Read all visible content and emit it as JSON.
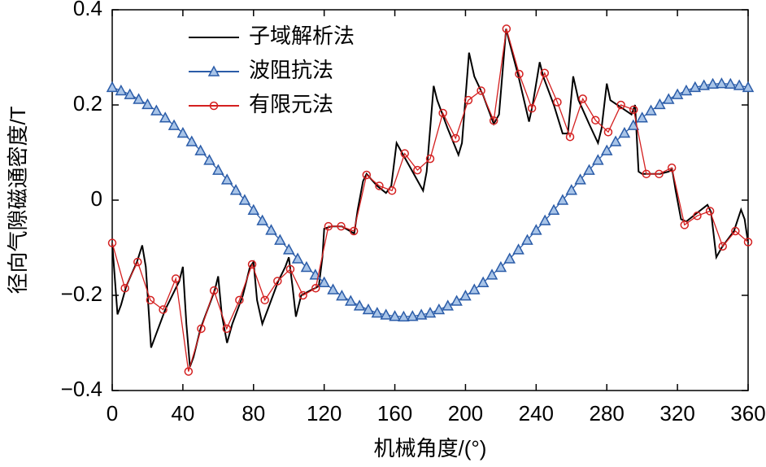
{
  "chart_data": {
    "type": "line",
    "x_label": "机械角度/(°)",
    "y_label": "径向气隙磁通密度/T",
    "xlim": [
      0,
      360
    ],
    "xticks": [
      0,
      40,
      80,
      120,
      160,
      200,
      240,
      280,
      320,
      360
    ],
    "ylim": [
      -0.4,
      0.4
    ],
    "yticks": [
      {
        "value": -0.4,
        "label": "−0.4"
      },
      {
        "value": -0.2,
        "label": "−0.2"
      },
      0,
      0.2,
      0.4
    ],
    "legend": "upper left",
    "series": [
      {
        "name": "子域解析法",
        "color": "#000000",
        "marker": "none",
        "x": [
          0,
          3,
          5,
          8,
          14,
          17,
          19,
          22,
          25,
          30,
          38,
          40,
          42,
          44,
          46,
          50,
          58,
          60,
          62,
          65,
          68,
          74,
          78,
          80,
          82,
          85,
          88,
          94,
          98,
          100,
          102,
          104,
          107,
          112,
          115,
          117,
          119,
          120,
          124,
          130,
          137,
          139,
          142,
          144,
          150,
          155,
          158,
          161,
          164,
          170,
          176,
          178,
          182,
          184,
          190,
          196,
          198,
          202,
          205,
          210,
          216,
          219,
          223,
          225,
          230,
          236,
          238,
          242,
          244,
          250,
          255,
          258,
          261,
          264,
          270,
          275,
          277,
          280,
          282,
          290,
          294,
          296,
          298,
          300,
          310,
          315,
          317,
          319,
          322,
          325,
          330,
          337,
          339,
          342,
          345,
          352,
          356,
          358,
          360
        ],
        "values": [
          -0.09,
          -0.24,
          -0.22,
          -0.18,
          -0.13,
          -0.095,
          -0.14,
          -0.31,
          -0.28,
          -0.23,
          -0.17,
          -0.14,
          -0.26,
          -0.35,
          -0.33,
          -0.27,
          -0.19,
          -0.16,
          -0.24,
          -0.3,
          -0.26,
          -0.2,
          -0.14,
          -0.13,
          -0.21,
          -0.26,
          -0.23,
          -0.17,
          -0.14,
          -0.12,
          -0.18,
          -0.245,
          -0.2,
          -0.19,
          -0.185,
          -0.18,
          -0.12,
          -0.06,
          -0.055,
          -0.055,
          -0.07,
          -0.02,
          0.04,
          0.055,
          0.03,
          0.015,
          0.03,
          0.12,
          0.1,
          0.06,
          0.02,
          0.06,
          0.24,
          0.21,
          0.15,
          0.095,
          0.12,
          0.31,
          0.26,
          0.22,
          0.16,
          0.18,
          0.36,
          0.33,
          0.26,
          0.165,
          0.2,
          0.29,
          0.26,
          0.2,
          0.14,
          0.14,
          0.26,
          0.21,
          0.16,
          0.12,
          0.15,
          0.245,
          0.21,
          0.19,
          0.18,
          0.2,
          0.06,
          0.055,
          0.055,
          0.06,
          0.065,
          0.02,
          -0.04,
          -0.045,
          -0.03,
          -0.01,
          -0.025,
          -0.12,
          -0.1,
          -0.065,
          -0.02,
          -0.04,
          -0.09
        ]
      },
      {
        "name": "波阻抗法",
        "color": "#2b5ca8",
        "marker": "triangle",
        "x": [
          0,
          5,
          10,
          15,
          20,
          25,
          30,
          35,
          40,
          45,
          50,
          55,
          60,
          65,
          70,
          75,
          80,
          85,
          90,
          95,
          100,
          105,
          110,
          115,
          120,
          125,
          130,
          135,
          140,
          145,
          150,
          155,
          160,
          165,
          170,
          175,
          180,
          185,
          190,
          195,
          200,
          205,
          210,
          215,
          220,
          225,
          230,
          235,
          240,
          245,
          250,
          255,
          260,
          265,
          270,
          275,
          280,
          285,
          290,
          295,
          300,
          305,
          310,
          315,
          320,
          325,
          330,
          335,
          340,
          345,
          350,
          355,
          360
        ],
        "values": [
          0.237,
          0.23,
          0.222,
          0.212,
          0.201,
          0.188,
          0.173,
          0.157,
          0.141,
          0.123,
          0.104,
          0.084,
          0.063,
          0.043,
          0.021,
          0,
          -0.021,
          -0.043,
          -0.063,
          -0.084,
          -0.104,
          -0.123,
          -0.141,
          -0.157,
          -0.173,
          -0.188,
          -0.201,
          -0.212,
          -0.222,
          -0.23,
          -0.237,
          -0.241,
          -0.244,
          -0.245,
          -0.244,
          -0.241,
          -0.237,
          -0.23,
          -0.222,
          -0.212,
          -0.201,
          -0.188,
          -0.173,
          -0.157,
          -0.141,
          -0.123,
          -0.104,
          -0.084,
          -0.063,
          -0.043,
          -0.021,
          0,
          0.021,
          0.043,
          0.063,
          0.084,
          0.104,
          0.123,
          0.141,
          0.157,
          0.173,
          0.188,
          0.201,
          0.212,
          0.222,
          0.23,
          0.237,
          0.241,
          0.244,
          0.245,
          0.244,
          0.241,
          0.237
        ]
      },
      {
        "name": "有限元法",
        "color": "#d42020",
        "marker": "circle",
        "x": [
          0,
          7.2,
          14.4,
          21.6,
          28.8,
          36,
          43.2,
          50.4,
          57.6,
          64.8,
          72,
          79.2,
          86.4,
          93.6,
          100.8,
          108,
          115.2,
          122.4,
          129.6,
          136.8,
          144,
          151.2,
          158.4,
          165.6,
          172.8,
          180,
          187.2,
          194.4,
          201.6,
          208.8,
          216,
          223.2,
          230.4,
          237.6,
          244.8,
          252,
          259.2,
          266.4,
          273.6,
          280.8,
          288,
          295.2,
          302.4,
          309.6,
          316.8,
          324,
          331.2,
          338.4,
          345.6,
          352.8,
          360
        ],
        "values": [
          -0.09,
          -0.185,
          -0.13,
          -0.21,
          -0.23,
          -0.165,
          -0.36,
          -0.27,
          -0.19,
          -0.27,
          -0.21,
          -0.135,
          -0.21,
          -0.17,
          -0.145,
          -0.2,
          -0.185,
          -0.055,
          -0.055,
          -0.065,
          0.053,
          0.03,
          0.02,
          0.098,
          0.063,
          0.087,
          0.183,
          0.13,
          0.21,
          0.23,
          0.167,
          0.36,
          0.265,
          0.193,
          0.267,
          0.206,
          0.133,
          0.213,
          0.168,
          0.143,
          0.2,
          0.19,
          0.055,
          0.055,
          0.068,
          -0.052,
          -0.033,
          -0.023,
          -0.097,
          -0.065,
          -0.088
        ]
      }
    ]
  }
}
